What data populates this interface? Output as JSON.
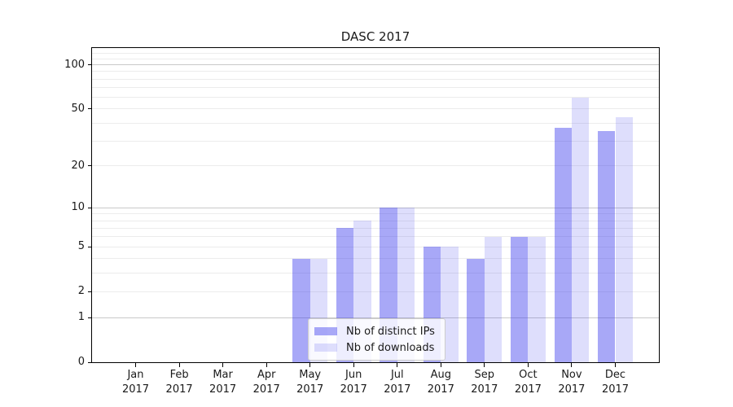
{
  "title": "DASC 2017",
  "colors": {
    "bar_ips": "rgba(62,62,238,0.45)",
    "bar_downloads": "rgba(62,62,238,0.17)",
    "grid_major": "#c9c9c9",
    "grid_minor": "#ececec",
    "axis": "#000000",
    "text": "#1a1a1a",
    "legend_bg": "rgba(255,255,255,0.8)",
    "legend_border": "#cccccc"
  },
  "chart_data": {
    "type": "bar",
    "title": "DASC 2017",
    "categories": [
      "Jan 2017",
      "Feb 2017",
      "Mar 2017",
      "Apr 2017",
      "May 2017",
      "Jun 2017",
      "Jul 2017",
      "Aug 2017",
      "Sep 2017",
      "Oct 2017",
      "Nov 2017",
      "Dec 2017"
    ],
    "series": [
      {
        "name": "Nb of distinct IPs",
        "values": [
          0,
          0,
          0,
          0,
          4,
          7,
          10,
          5,
          4,
          6,
          37,
          35
        ]
      },
      {
        "name": "Nb of downloads",
        "values": [
          0,
          0,
          0,
          0,
          4,
          8,
          10,
          5,
          6,
          6,
          60,
          44
        ]
      }
    ],
    "xlabel": "",
    "ylabel": "",
    "y_scale": "log1p",
    "ylim": [
      0,
      130
    ],
    "y_ticks": [
      0,
      1,
      2,
      5,
      10,
      20,
      50,
      100
    ],
    "y_major_gridlines": [
      1,
      10,
      100
    ],
    "y_minor_gridlines": [
      3,
      4,
      6,
      7,
      8,
      9,
      30,
      40,
      60,
      70,
      80,
      90,
      110,
      120
    ],
    "grid": "horizontal",
    "legend_position": "lower center"
  }
}
